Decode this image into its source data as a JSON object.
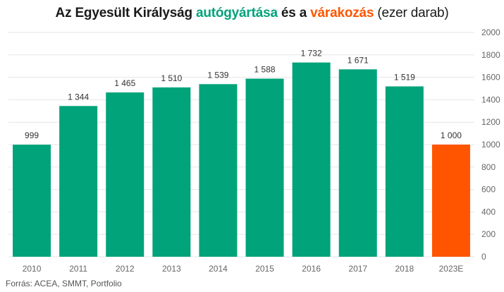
{
  "title": {
    "part1": "Az Egyesült Királyság ",
    "part2": "autógyártása",
    "part3": " és a ",
    "part4": "várakozás",
    "part5": " (ezer darab)"
  },
  "source": "Forrás:  ACEA, SMMT, Portfolio",
  "colors": {
    "actual": "#00a37a",
    "forecast": "#ff5500",
    "title_green": "#00a37a",
    "title_orange": "#ff5500",
    "grid": "#e6e6e6",
    "text": "#333333",
    "axis_text": "#666666"
  },
  "chart_data": {
    "type": "bar",
    "categories": [
      "2010",
      "2011",
      "2012",
      "2013",
      "2014",
      "2015",
      "2016",
      "2017",
      "2018",
      "2023E"
    ],
    "values": [
      999,
      1344,
      1465,
      1510,
      1539,
      1588,
      1732,
      1671,
      1519,
      1000
    ],
    "value_labels": [
      "999",
      "1 344",
      "1 465",
      "1 510",
      "1 539",
      "1 588",
      "1 732",
      "1 671",
      "1 519",
      "1 000"
    ],
    "forecast_index": 9,
    "yticks": [
      0,
      200,
      400,
      600,
      800,
      1000,
      1200,
      1400,
      1600,
      1800,
      2000
    ],
    "ylim": [
      0,
      2000
    ],
    "y_axis_position": "right",
    "grid": true,
    "title": "Az Egyesült Királyság autógyártása és a várakozás (ezer darab)",
    "xlabel": "",
    "ylabel": ""
  }
}
